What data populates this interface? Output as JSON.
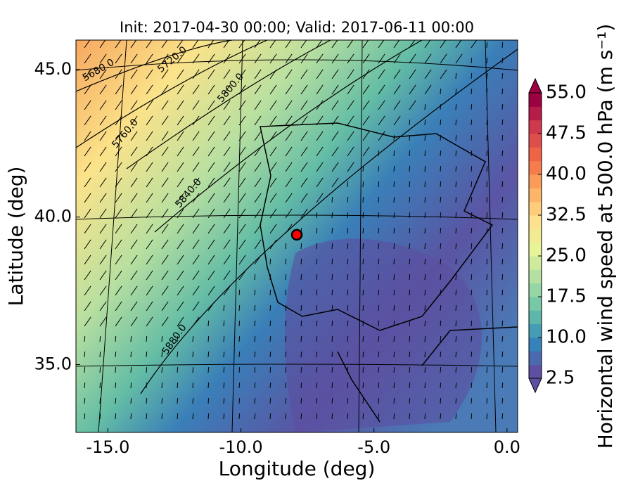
{
  "chart_data": {
    "type": "map",
    "title": "Init: 2017-04-30 00:00; Valid: 2017-06-11 00:00",
    "x_label": "Longitude (deg)",
    "y_label": "Latitude (deg)",
    "xlim": [
      -16.2,
      0.4
    ],
    "ylim": [
      32.7,
      46.0
    ],
    "xticks": [
      {
        "value": -15,
        "label": "-15.0"
      },
      {
        "value": -10,
        "label": "-10.0"
      },
      {
        "value": -5,
        "label": "-5.0"
      },
      {
        "value": 0,
        "label": "0.0"
      }
    ],
    "yticks": [
      {
        "value": 35,
        "label": "35.0"
      },
      {
        "value": 40,
        "label": "40.0"
      },
      {
        "value": 45,
        "label": "45.0"
      }
    ],
    "marker": {
      "lon": -7.9,
      "lat": 39.4,
      "color": "#ff0000"
    },
    "contour_labels": [
      "5680.0",
      "5720.0",
      "5800.0",
      "5760.0",
      "5840.0",
      "5880.0"
    ],
    "colorbar": {
      "label": "Horizontal wind speed at 500.0 hPa (m s⁻¹)",
      "lim": [
        2.5,
        55
      ],
      "ticks": [
        2.5,
        10.0,
        17.5,
        25.0,
        32.5,
        40.0,
        47.5,
        55.0
      ],
      "tick_labels": [
        "2.5",
        "10.0",
        "17.5",
        "25.0",
        "32.5",
        "40.0",
        "47.5",
        "55.0"
      ]
    }
  }
}
